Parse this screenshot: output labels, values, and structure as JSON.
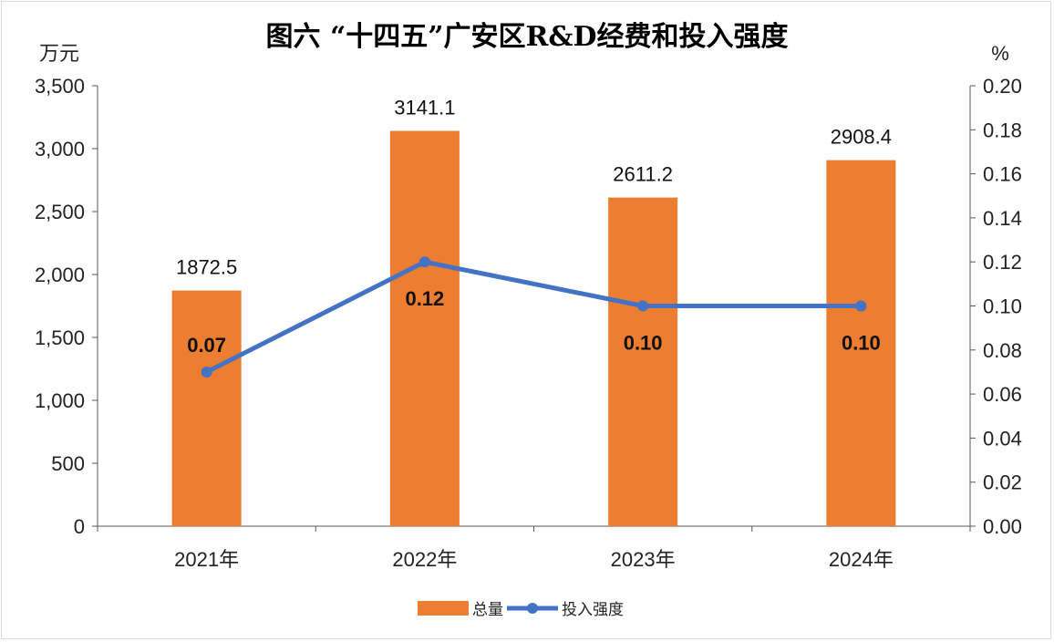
{
  "chart_data": {
    "type": "bar",
    "title": "图六 “十四五”广安区R&D经费和投入强度",
    "categories": [
      "2021年",
      "2022年",
      "2023年",
      "2024年"
    ],
    "series": [
      {
        "name": "总量",
        "type": "bar",
        "axis": "left",
        "values": [
          1872.5,
          3141.1,
          2611.2,
          2908.4
        ],
        "labels": [
          "1872.5",
          "3141.1",
          "2611.2",
          "2908.4"
        ],
        "color": "#ED7D31"
      },
      {
        "name": "投入强度",
        "type": "line",
        "axis": "right",
        "values": [
          0.07,
          0.12,
          0.1,
          0.1
        ],
        "labels": [
          "0.07",
          "0.12",
          "0.10",
          "0.10"
        ],
        "color": "#4472C4"
      }
    ],
    "ylabel": "万元",
    "ylim": [
      0,
      3500
    ],
    "yticks": [
      "0",
      "500",
      "1,000",
      "1,500",
      "2,000",
      "2,500",
      "3,000",
      "3,500"
    ],
    "y2label": "%",
    "y2lim": [
      0,
      0.2
    ],
    "y2ticks": [
      "0.00",
      "0.02",
      "0.04",
      "0.06",
      "0.08",
      "0.10",
      "0.12",
      "0.14",
      "0.16",
      "0.18",
      "0.20"
    ],
    "legend": "bottom"
  }
}
